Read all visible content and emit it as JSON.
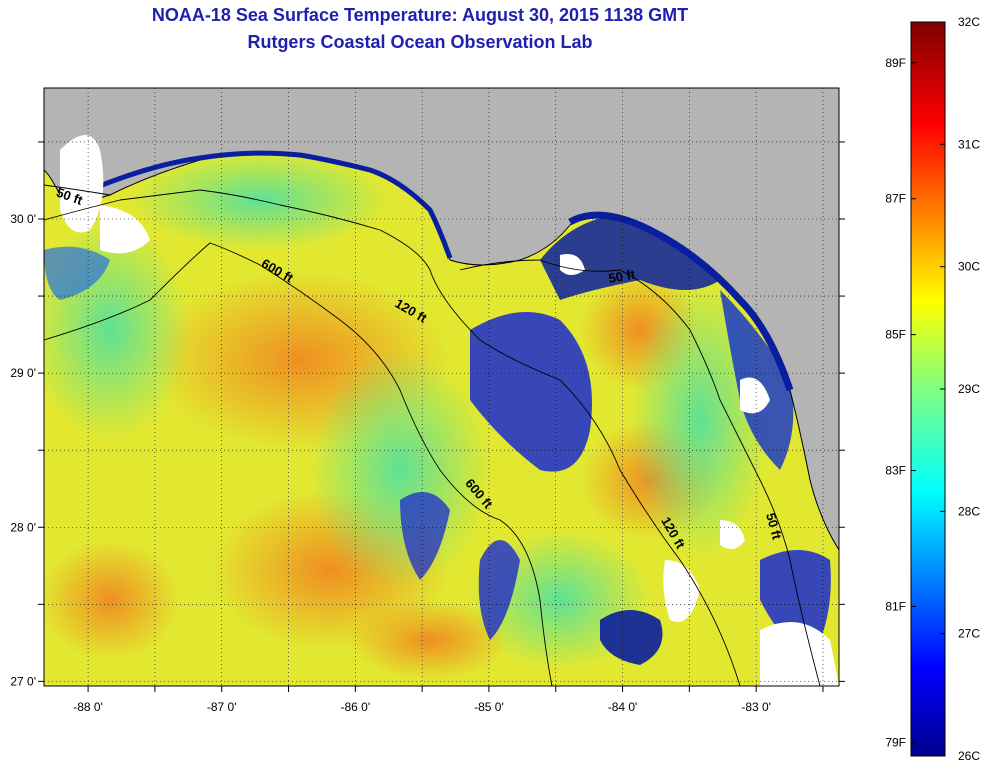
{
  "title": "NOAA-18 Sea Surface Temperature:  August 30, 2015 1138 GMT",
  "subtitle": "Rutgers Coastal Ocean Observation Lab",
  "colors": {
    "land": "#b4b4b4",
    "cloud": "#ffffff",
    "coast": "#000000"
  },
  "map": {
    "lon_range": [
      -88.33,
      -82.38
    ],
    "lat_range": [
      26.97,
      30.85
    ],
    "lon_ticks": [
      {
        "value": -88,
        "label": "-88 0'"
      },
      {
        "value": -87,
        "label": "-87 0'"
      },
      {
        "value": -86,
        "label": "-86 0'"
      },
      {
        "value": -85,
        "label": "-85 0'"
      },
      {
        "value": -84,
        "label": "-84 0'"
      },
      {
        "value": -83,
        "label": "-83 0'"
      }
    ],
    "lat_ticks": [
      {
        "value": 27,
        "label": "27 0'"
      },
      {
        "value": 28,
        "label": "28 0'"
      },
      {
        "value": 29,
        "label": "29 0'"
      },
      {
        "value": 30,
        "label": "30 0'"
      }
    ],
    "contour_labels": [
      {
        "text": "50 ft",
        "lon": -88.15,
        "lat": 30.12,
        "rotate": 20
      },
      {
        "text": "600 ft",
        "lon": -86.6,
        "lat": 29.64,
        "rotate": 30
      },
      {
        "text": "120 ft",
        "lon": -85.6,
        "lat": 29.38,
        "rotate": 30
      },
      {
        "text": "50 ft",
        "lon": -84.0,
        "lat": 29.6,
        "rotate": -10
      },
      {
        "text": "600 ft",
        "lon": -85.1,
        "lat": 28.2,
        "rotate": 50
      },
      {
        "text": "120 ft",
        "lon": -83.65,
        "lat": 27.95,
        "rotate": 60
      },
      {
        "text": "50 ft",
        "lon": -82.9,
        "lat": 28.0,
        "rotate": 75
      }
    ]
  },
  "colorbar": {
    "celsius": [
      {
        "value": 26,
        "label": "26C"
      },
      {
        "value": 27,
        "label": "27C"
      },
      {
        "value": 28,
        "label": "28C"
      },
      {
        "value": 29,
        "label": "29C"
      },
      {
        "value": 30,
        "label": "30C"
      },
      {
        "value": 31,
        "label": "31C"
      },
      {
        "value": 32,
        "label": "32C"
      }
    ],
    "fahrenheit": [
      {
        "value": 79,
        "label": "79F"
      },
      {
        "value": 81,
        "label": "81F"
      },
      {
        "value": 83,
        "label": "83F"
      },
      {
        "value": 85,
        "label": "85F"
      },
      {
        "value": 87,
        "label": "87F"
      },
      {
        "value": 89,
        "label": "89F"
      }
    ]
  }
}
